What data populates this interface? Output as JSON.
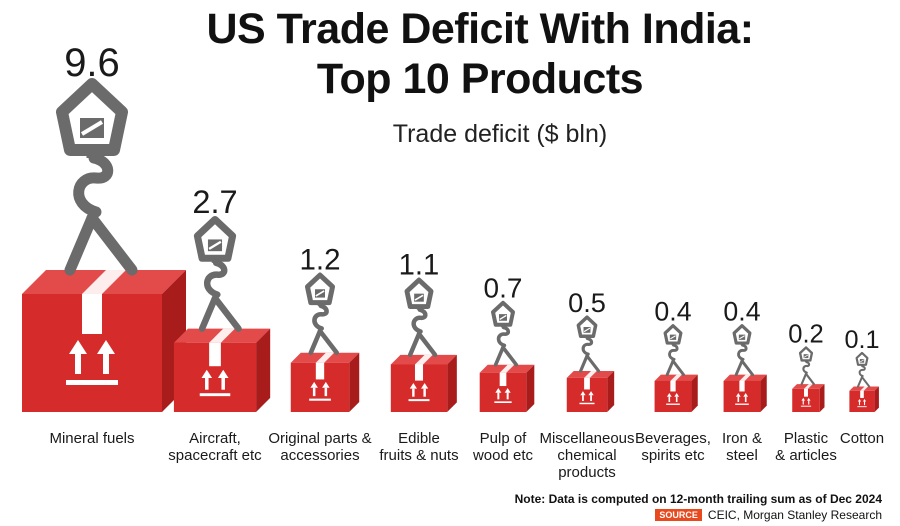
{
  "chart_data": {
    "type": "bar",
    "title": "US Trade Deficit With India:\nTop 10 Products",
    "subtitle": "Trade deficit ($ bln)",
    "unit": "$ bln",
    "categories": [
      "Mineral fuels",
      "Aircraft,\nspacecraft etc",
      "Original parts &\naccessories",
      "Edible\nfruits & nuts",
      "Pulp of\nwood etc",
      "Miscellaneous\nchemical\nproducts",
      "Beverages,\nspirits etc",
      "Iron &\nsteel",
      "Plastic\n& articles",
      "Cotton"
    ],
    "values": [
      9.6,
      2.7,
      1.2,
      1.1,
      0.7,
      0.5,
      0.4,
      0.4,
      0.2,
      0.1
    ],
    "value_labels": [
      "9.6",
      "2.7",
      "1.2",
      "1.1",
      "0.7",
      "0.5",
      "0.4",
      "0.4",
      "0.2",
      "0.1"
    ],
    "marker": "box-on-crane-hook",
    "colors": {
      "box": "#d62b2b",
      "box_dark": "#a81c1c",
      "box_light": "#e34a4a",
      "hook": "#6b6b6b"
    }
  },
  "footer": {
    "note": "Note: Data is computed on 12-month trailing sum as of Dec 2024",
    "source_badge": "SOURCE",
    "source_text": "CEIC, Morgan Stanley Research"
  }
}
